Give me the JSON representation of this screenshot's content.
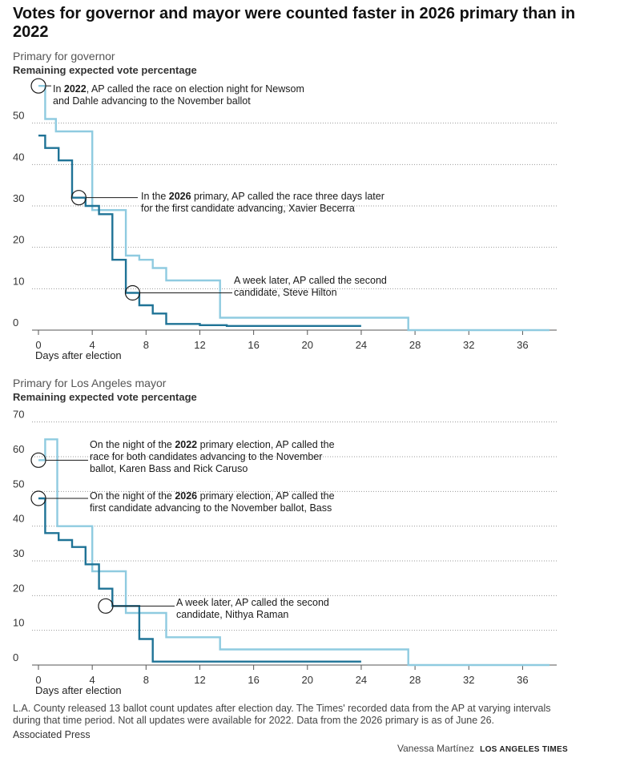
{
  "headline": "Votes for governor and mayor were counted faster in 2026 primary than in 2022",
  "colors": {
    "y2022": "#8fcbe0",
    "y2026": "#1f7396",
    "grid": "#9a9a9a",
    "axis": "#555555"
  },
  "chart_data": [
    {
      "type": "line",
      "title": "Primary for governor",
      "ylabel": "Remaining expected vote percentage",
      "xlabel": "Days after election",
      "xticks": [
        0,
        4,
        8,
        12,
        16,
        20,
        24,
        28,
        32,
        36
      ],
      "yticks": [
        0,
        10,
        20,
        30,
        40,
        50
      ],
      "xlim": [
        -0.5,
        38.5
      ],
      "ylim": [
        0,
        60
      ],
      "grid": "horizontal dotted",
      "series": [
        {
          "label": "2022",
          "color_key": "y2022",
          "x": [
            0,
            0.5,
            0.5,
            1.3,
            1.3,
            4.0,
            4.0,
            6.5,
            6.5,
            7.5,
            7.5,
            8.5,
            8.5,
            9.5,
            9.5,
            13.5,
            13.5,
            27.5,
            27.5,
            38.0
          ],
          "y": [
            59,
            59,
            51,
            51,
            48,
            48,
            29,
            29,
            18,
            18,
            17,
            17,
            15,
            15,
            12,
            12,
            3,
            3,
            0,
            0
          ]
        },
        {
          "label": "2026",
          "color_key": "y2026",
          "x": [
            0,
            0.5,
            0.5,
            1.5,
            1.5,
            2.5,
            2.5,
            3.5,
            3.5,
            4.5,
            4.5,
            5.5,
            5.5,
            6.5,
            6.5,
            7.5,
            7.5,
            8.5,
            8.5,
            9.5,
            9.5,
            12.0,
            12.0,
            14.0,
            14.0,
            16.0,
            16.0,
            24.0
          ],
          "y": [
            47,
            47,
            44,
            44,
            41,
            41,
            32,
            32,
            30,
            30,
            28,
            28,
            17,
            17,
            9,
            9,
            6,
            6,
            4,
            4,
            1.5,
            1.5,
            1.2,
            1.2,
            1,
            1,
            1,
            1
          ]
        }
      ],
      "annotations": [
        {
          "year": "2022",
          "x": 0,
          "y": 59,
          "text": [
            [
              [
                "In ",
                false
              ],
              [
                "2022",
                true
              ],
              [
                ", AP called the race on election night for Newsom",
                false
              ]
            ],
            [
              [
                "and Dahle advancing to the November ballot",
                false
              ]
            ]
          ]
        },
        {
          "year": "2026",
          "x": 3,
          "y": 32,
          "text": [
            [
              [
                "In the ",
                false
              ],
              [
                "2026",
                true
              ],
              [
                " primary, AP called the race three days later",
                false
              ]
            ],
            [
              [
                "for the first candidate advancing, Xavier Becerra",
                false
              ]
            ]
          ]
        },
        {
          "year": "2026",
          "x": 7,
          "y": 9,
          "text": [
            [
              [
                "A week later, AP called the second",
                false
              ]
            ],
            [
              [
                "candidate, Steve Hilton",
                false
              ]
            ]
          ]
        }
      ]
    },
    {
      "type": "line",
      "title": "Primary for Los Angeles mayor",
      "ylabel": "Remaining expected vote percentage",
      "xlabel": "Days after election",
      "xticks": [
        0,
        4,
        8,
        12,
        16,
        20,
        24,
        28,
        32,
        36
      ],
      "yticks": [
        0,
        10,
        20,
        30,
        40,
        50,
        60,
        70
      ],
      "xlim": [
        -0.5,
        38.5
      ],
      "ylim": [
        0,
        72
      ],
      "grid": "horizontal dotted",
      "series": [
        {
          "label": "2022",
          "color_key": "y2022",
          "x": [
            0,
            0.5,
            0.5,
            1.4,
            1.4,
            4.0,
            4.0,
            6.5,
            6.5,
            9.5,
            9.5,
            13.5,
            13.5,
            27.5,
            27.5,
            38.0
          ],
          "y": [
            59,
            59,
            65,
            65,
            40,
            40,
            27,
            27,
            15,
            15,
            8,
            8,
            4.5,
            4.5,
            0,
            0
          ]
        },
        {
          "label": "2026",
          "color_key": "y2026",
          "x": [
            0,
            0.5,
            0.5,
            1.5,
            1.5,
            2.5,
            2.5,
            3.5,
            3.5,
            4.5,
            4.5,
            5.5,
            5.5,
            7.5,
            7.5,
            8.5,
            8.5,
            24.0
          ],
          "y": [
            48,
            48,
            38,
            38,
            36,
            36,
            34,
            34,
            29,
            29,
            22,
            22,
            17,
            17,
            7.5,
            7.5,
            1,
            1
          ]
        }
      ],
      "annotations": [
        {
          "year": "2022",
          "x": 0,
          "y": 59,
          "text": [
            [
              [
                "On the night of the ",
                false
              ],
              [
                "2022",
                true
              ],
              [
                " primary election, AP called the",
                false
              ]
            ],
            [
              [
                "race for both candidates advancing to the November",
                false
              ]
            ],
            [
              [
                "ballot, Karen Bass and Rick Caruso",
                false
              ]
            ]
          ]
        },
        {
          "year": "2026",
          "x": 0,
          "y": 48,
          "text": [
            [
              [
                "On the night of the ",
                false
              ],
              [
                "2026",
                true
              ],
              [
                " primary election, AP called the",
                false
              ]
            ],
            [
              [
                "first candidate advancing to the November ballot, Bass",
                false
              ]
            ]
          ]
        },
        {
          "year": "2026",
          "x": 5,
          "y": 17,
          "text": [
            [
              [
                "A week later, AP called the second",
                false
              ]
            ],
            [
              [
                "candidate, Nithya Raman",
                false
              ]
            ]
          ]
        }
      ]
    }
  ],
  "footer": {
    "note": "L.A. County released 13 ballot count updates after election day. The Times' recorded data from the AP at varying intervals during that time period. Not all updates were available for 2022. Data from the 2026 primary is as of June 26.",
    "source": "Associated Press",
    "byline": "Vanessa Martínez",
    "publication": "LOS ANGELES TIMES"
  }
}
